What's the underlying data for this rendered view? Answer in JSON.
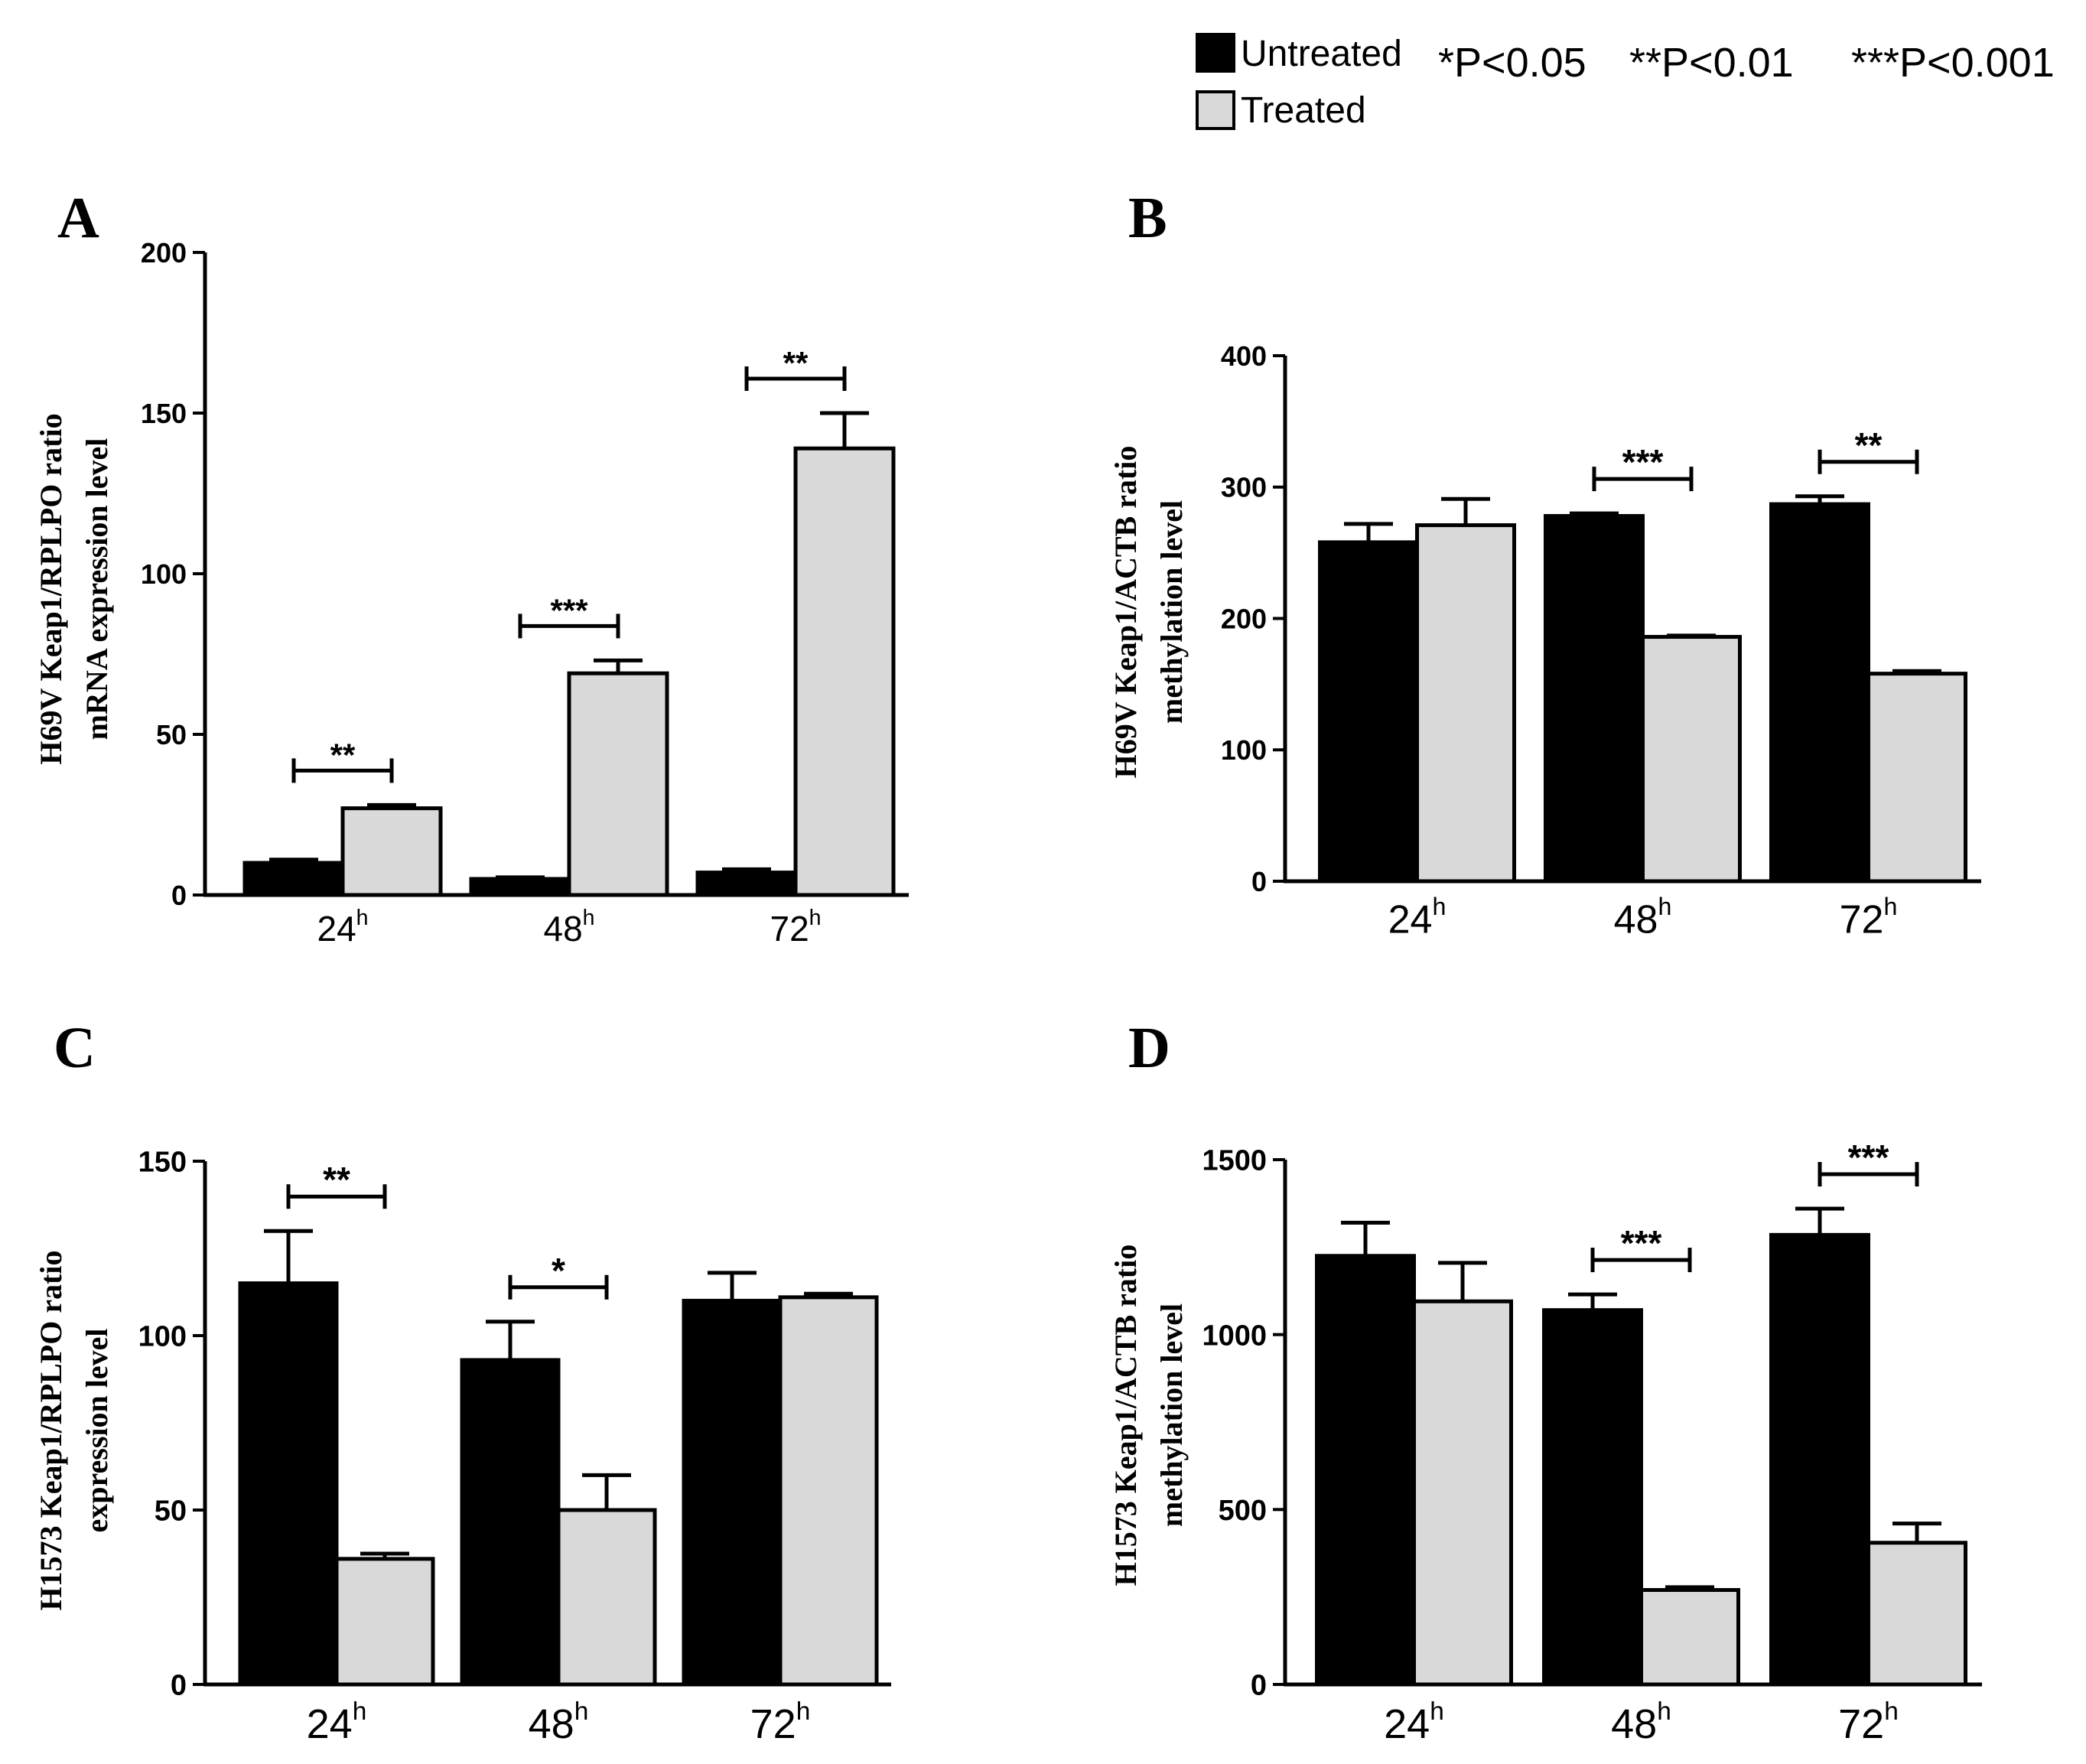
{
  "legend": {
    "entries": [
      {
        "label": "Untreated",
        "color": "#000000"
      },
      {
        "label": "Treated",
        "color": "#d9d9d9"
      }
    ],
    "significance": [
      "*P<0.05",
      "**P<0.01",
      "***P<0.001"
    ]
  },
  "chart_data": [
    {
      "panel": "A",
      "type": "bar",
      "ylabel_lines": [
        "H69V Keap1/RPLPO ratio",
        "mRNA expression level"
      ],
      "categories": [
        "24",
        "48",
        "72"
      ],
      "category_superscript": "h",
      "ylim": [
        0,
        200
      ],
      "yticks": [
        0,
        50,
        100,
        150,
        200
      ],
      "series": [
        {
          "name": "Untreated",
          "values": [
            10,
            5,
            7
          ],
          "errors": [
            1,
            0.5,
            1
          ]
        },
        {
          "name": "Treated",
          "values": [
            27,
            69,
            139
          ],
          "errors": [
            1,
            4,
            11
          ]
        }
      ],
      "significance": [
        {
          "category": "24",
          "label": "**"
        },
        {
          "category": "48",
          "label": "***"
        },
        {
          "category": "72",
          "label": "**"
        }
      ]
    },
    {
      "panel": "B",
      "type": "bar",
      "ylabel_lines": [
        "H69V Keap1/ACTB ratio",
        "methylation level"
      ],
      "categories": [
        "24",
        "48",
        "72"
      ],
      "category_superscript": "h",
      "ylim": [
        0,
        400
      ],
      "yticks": [
        0,
        100,
        200,
        300,
        400
      ],
      "series": [
        {
          "name": "Untreated",
          "values": [
            258,
            278,
            287
          ],
          "errors": [
            14,
            2,
            6
          ]
        },
        {
          "name": "Treated",
          "values": [
            271,
            186,
            158
          ],
          "errors": [
            20,
            1,
            2
          ]
        }
      ],
      "significance": [
        {
          "category": "48",
          "label": "***"
        },
        {
          "category": "72",
          "label": "**"
        }
      ]
    },
    {
      "panel": "C",
      "type": "bar",
      "ylabel_lines": [
        "H1573 Keap1/RPLPO ratio",
        "expression level"
      ],
      "categories": [
        "24",
        "48",
        "72"
      ],
      "category_superscript": "h",
      "ylim": [
        0,
        150
      ],
      "yticks": [
        0,
        50,
        100,
        150
      ],
      "series": [
        {
          "name": "Untreated",
          "values": [
            115,
            93,
            110
          ],
          "errors": [
            15,
            11,
            8
          ]
        },
        {
          "name": "Treated",
          "values": [
            36,
            50,
            111
          ],
          "errors": [
            1.5,
            10,
            1
          ]
        }
      ],
      "significance": [
        {
          "category": "24",
          "label": "**"
        },
        {
          "category": "48",
          "label": "*"
        }
      ]
    },
    {
      "panel": "D",
      "type": "bar",
      "ylabel_lines": [
        "H1573 Keap1/ACTB ratio",
        "methylation level"
      ],
      "categories": [
        "24",
        "48",
        "72"
      ],
      "category_superscript": "h",
      "ylim": [
        0,
        1500
      ],
      "yticks": [
        0,
        500,
        1000,
        1500
      ],
      "series": [
        {
          "name": "Untreated",
          "values": [
            1225,
            1070,
            1285
          ],
          "errors": [
            95,
            45,
            75
          ]
        },
        {
          "name": "Treated",
          "values": [
            1095,
            270,
            405
          ],
          "errors": [
            110,
            8,
            55
          ]
        }
      ],
      "significance": [
        {
          "category": "48",
          "label": "***"
        },
        {
          "category": "72",
          "label": "***"
        }
      ]
    }
  ]
}
